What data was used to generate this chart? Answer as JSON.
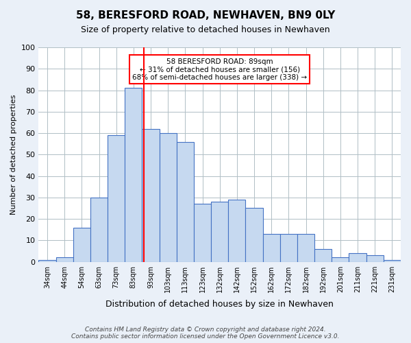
{
  "title": "58, BERESFORD ROAD, NEWHAVEN, BN9 0LY",
  "subtitle": "Size of property relative to detached houses in Newhaven",
  "xlabel": "Distribution of detached houses by size in Newhaven",
  "ylabel": "Number of detached properties",
  "footnote": "Contains HM Land Registry data © Crown copyright and database right 2024.\nContains public sector information licensed under the Open Government Licence v3.0.",
  "bin_labels": [
    "34sqm",
    "44sqm",
    "54sqm",
    "63sqm",
    "73sqm",
    "83sqm",
    "93sqm",
    "103sqm",
    "113sqm",
    "123sqm",
    "132sqm",
    "142sqm",
    "152sqm",
    "162sqm",
    "172sqm",
    "182sqm",
    "192sqm",
    "201sqm",
    "211sqm",
    "221sqm",
    "231sqm"
  ],
  "bar_heights": [
    1,
    2,
    16,
    30,
    59,
    81,
    62,
    60,
    56,
    27,
    28,
    29,
    25,
    13,
    13,
    13,
    6,
    2,
    4,
    3,
    1
  ],
  "bar_color": "#c6d9f0",
  "bar_edge_color": "#4472c4",
  "property_line_x": 89,
  "annotation_text": "58 BERESFORD ROAD: 89sqm\n← 31% of detached houses are smaller (156)\n68% of semi-detached houses are larger (338) →",
  "annotation_box_color": "white",
  "annotation_border_color": "red",
  "vline_color": "red",
  "ylim": [
    0,
    100
  ],
  "yticks": [
    0,
    10,
    20,
    30,
    40,
    50,
    60,
    70,
    80,
    90,
    100
  ],
  "bg_color": "#eaf0f8",
  "plot_bg_color": "white",
  "grid_color": "#b0bec5"
}
